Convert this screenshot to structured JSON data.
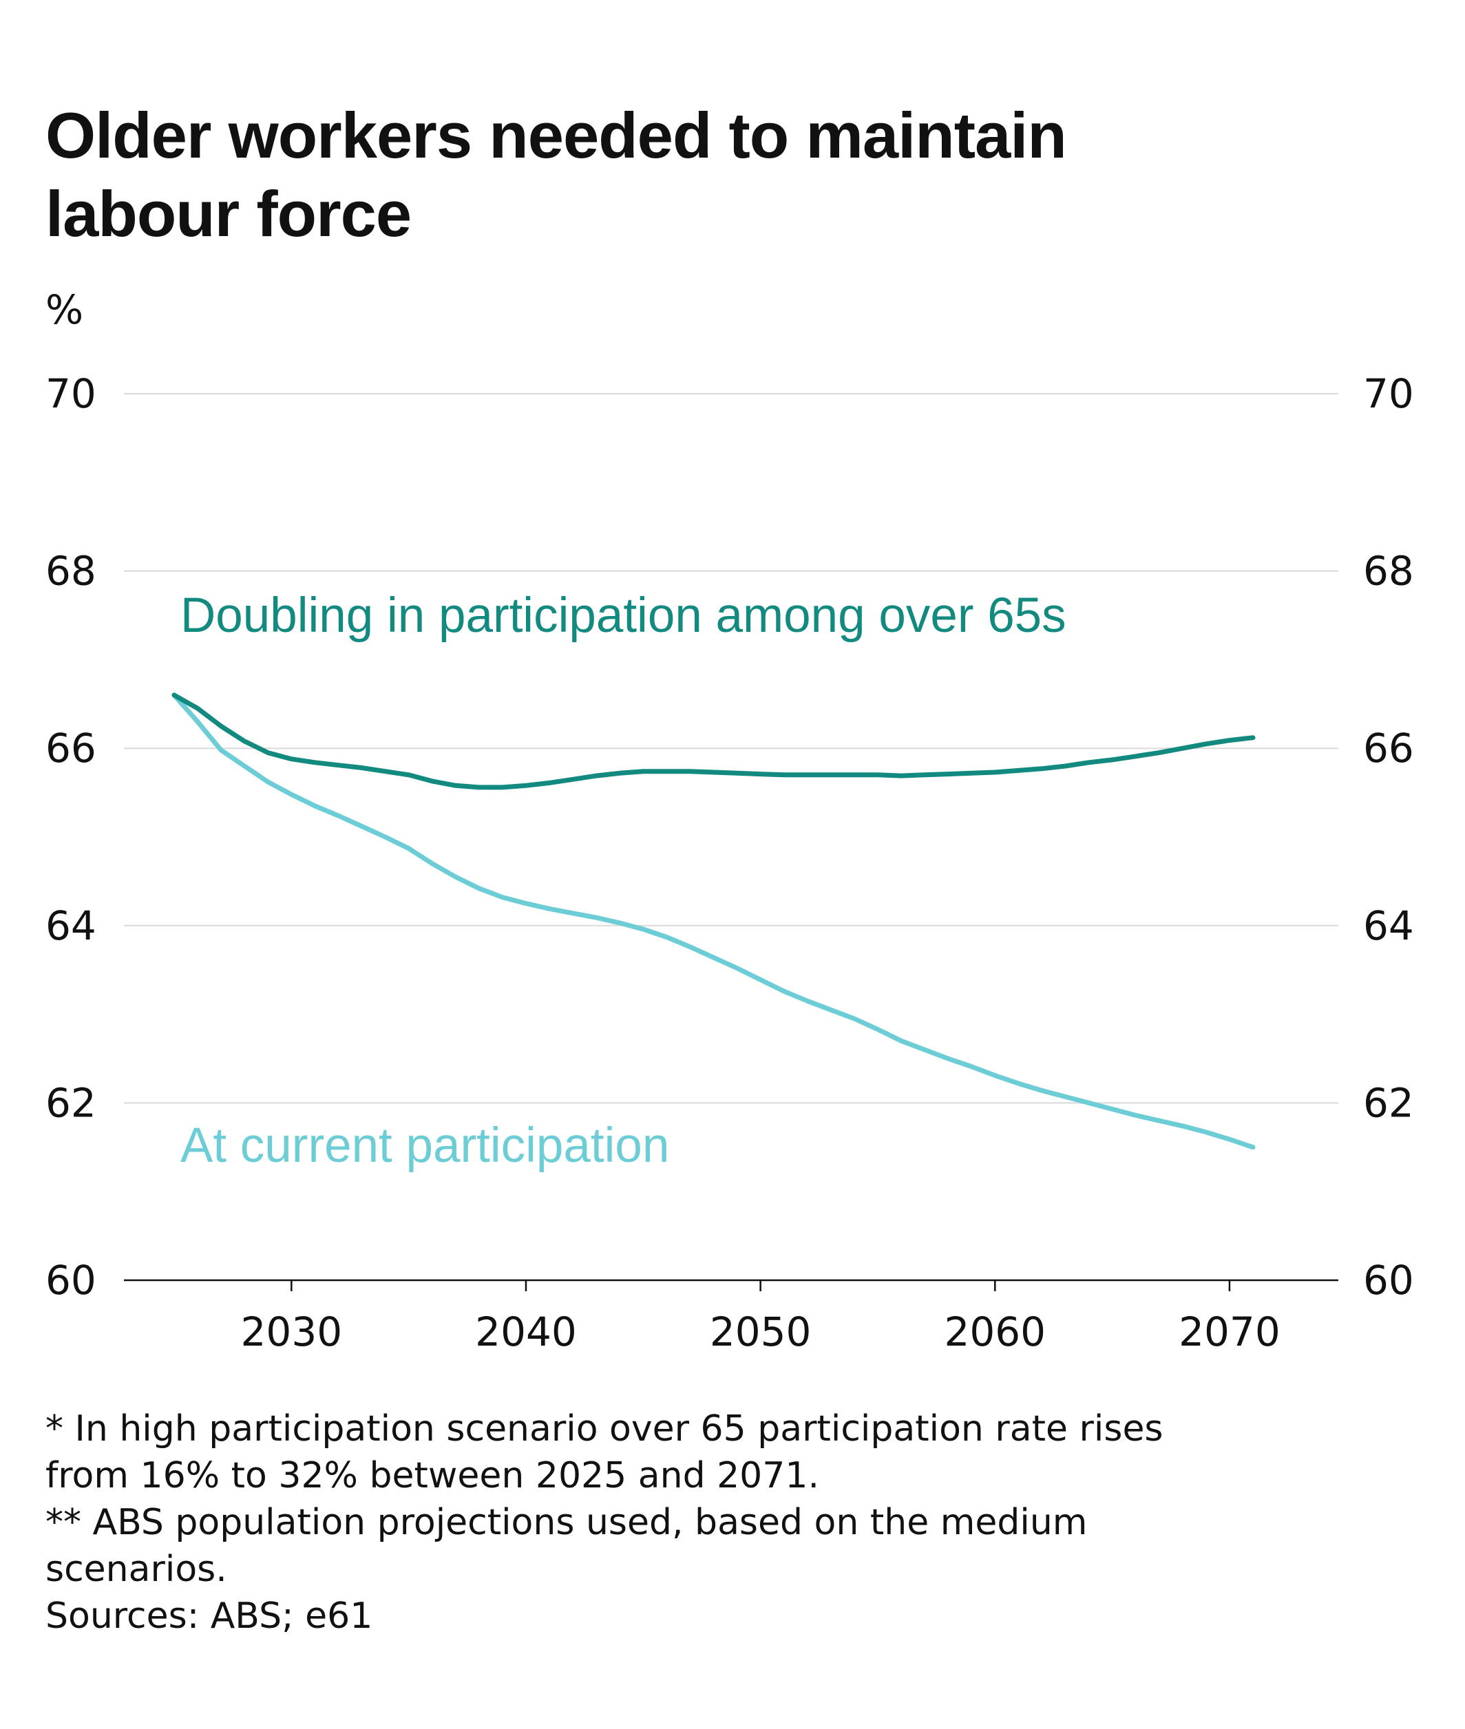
{
  "chart_data": {
    "type": "line",
    "title": "Older workers needed to maintain labour force",
    "ylabel": "%",
    "xlabel": "",
    "ylim": [
      60,
      70
    ],
    "xlim": [
      2025,
      2071
    ],
    "yticks": [
      60,
      62,
      64,
      66,
      68,
      70
    ],
    "xticks": [
      2030,
      2040,
      2050,
      2060,
      2070
    ],
    "grid": true,
    "legend": "direct labels on chart",
    "series": [
      {
        "name": "Doubling in participation among over 65s",
        "color": "#138a80",
        "x": [
          2025,
          2026,
          2027,
          2028,
          2029,
          2030,
          2031,
          2032,
          2033,
          2034,
          2035,
          2036,
          2037,
          2038,
          2039,
          2040,
          2041,
          2042,
          2043,
          2044,
          2045,
          2046,
          2047,
          2048,
          2049,
          2050,
          2051,
          2052,
          2053,
          2054,
          2055,
          2056,
          2057,
          2058,
          2059,
          2060,
          2061,
          2062,
          2063,
          2064,
          2065,
          2066,
          2067,
          2068,
          2069,
          2070,
          2071
        ],
        "values": [
          66.6,
          66.45,
          66.25,
          66.08,
          65.95,
          65.88,
          65.84,
          65.81,
          65.78,
          65.74,
          65.7,
          65.63,
          65.58,
          65.56,
          65.56,
          65.58,
          65.61,
          65.65,
          65.69,
          65.72,
          65.74,
          65.74,
          65.74,
          65.73,
          65.72,
          65.71,
          65.7,
          65.7,
          65.7,
          65.7,
          65.7,
          65.69,
          65.7,
          65.71,
          65.72,
          65.73,
          65.75,
          65.77,
          65.8,
          65.84,
          65.87,
          65.91,
          65.95,
          66.0,
          66.05,
          66.09,
          66.12
        ]
      },
      {
        "name": "At current participation",
        "color": "#6dcdd6",
        "x": [
          2025,
          2026,
          2027,
          2028,
          2029,
          2030,
          2031,
          2032,
          2033,
          2034,
          2035,
          2036,
          2037,
          2038,
          2039,
          2040,
          2041,
          2042,
          2043,
          2044,
          2045,
          2046,
          2047,
          2048,
          2049,
          2050,
          2051,
          2052,
          2053,
          2054,
          2055,
          2056,
          2057,
          2058,
          2059,
          2060,
          2061,
          2062,
          2063,
          2064,
          2065,
          2066,
          2067,
          2068,
          2069,
          2070,
          2071
        ],
        "values": [
          66.6,
          66.3,
          65.98,
          65.8,
          65.62,
          65.48,
          65.35,
          65.24,
          65.12,
          65.0,
          64.87,
          64.7,
          64.55,
          64.42,
          64.32,
          64.25,
          64.19,
          64.14,
          64.09,
          64.03,
          63.96,
          63.87,
          63.76,
          63.64,
          63.52,
          63.39,
          63.26,
          63.15,
          63.05,
          62.95,
          62.83,
          62.7,
          62.6,
          62.5,
          62.41,
          62.31,
          62.22,
          62.14,
          62.07,
          62.0,
          61.93,
          61.86,
          61.8,
          61.74,
          61.67,
          61.59,
          61.5
        ]
      }
    ],
    "annotations": [
      {
        "text": "Doubling in participation among over 65s",
        "color": "#138a80"
      },
      {
        "text": "At current participation",
        "color": "#6dcdd6"
      }
    ]
  },
  "notes": [
    "* In high participation scenario over 65 participation rate rises",
    "from 16% to 32% between 2025 and 2071.",
    "** ABS population projections used, based on the medium",
    "scenarios.",
    "Sources: ABS; e61"
  ],
  "colors": {
    "gridline": "#d9d9d9",
    "axis": "#111111",
    "text": "#111111"
  }
}
